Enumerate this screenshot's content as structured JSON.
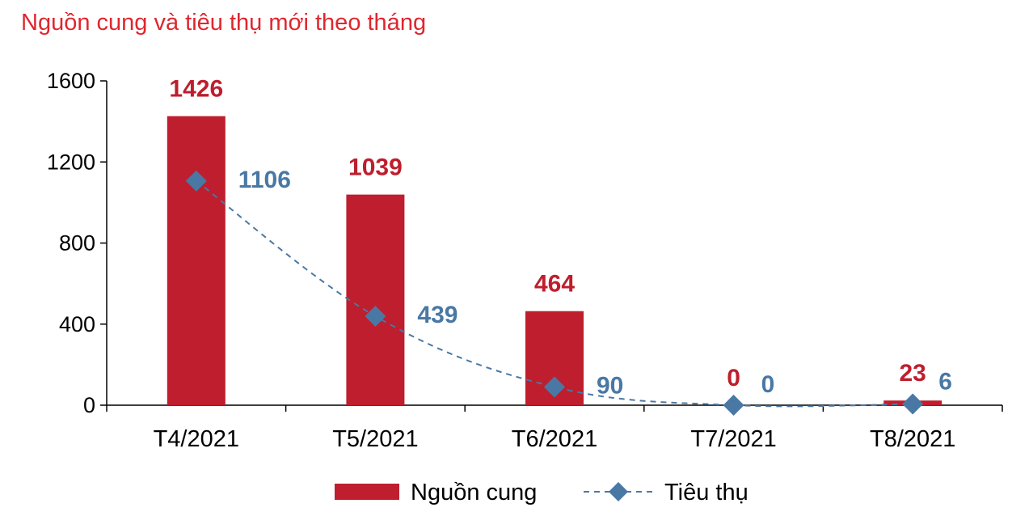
{
  "chart_data": {
    "type": "bar",
    "title": "Nguồn cung và tiêu thụ mới theo tháng",
    "categories": [
      "T4/2021",
      "T5/2021",
      "T6/2021",
      "T7/2021",
      "T8/2021"
    ],
    "ylim": [
      0,
      1600
    ],
    "yticks": [
      0,
      400,
      800,
      1200,
      1600
    ],
    "grid": false,
    "legend_position": "bottom",
    "series": [
      {
        "name": "Nguồn cung",
        "kind": "bar",
        "color": "#be1e2d",
        "label_color": "#be1e2d",
        "values": [
          1426,
          1039,
          464,
          0,
          23
        ]
      },
      {
        "name": "Tiêu thụ",
        "kind": "line",
        "line_style": "dashed",
        "marker": "diamond",
        "color": "#4a78a4",
        "label_color": "#4a78a4",
        "values": [
          1106,
          439,
          90,
          0,
          6
        ]
      }
    ]
  }
}
